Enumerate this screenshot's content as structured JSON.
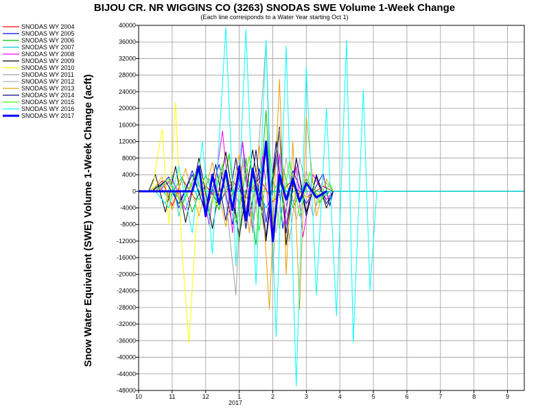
{
  "chart_data": {
    "type": "line",
    "title": "BIJOU CR. NR WIGGINS CO (3263) SNODAS SWE Volume 1-Week Change",
    "subtitle": "(Each line corresponds to a Water Year starting Oct 1)",
    "ylabel": "Snow Water Equivalent (SWE) Volume 1-Week Change (acft)",
    "xlabel": "",
    "ylim": [
      -48000,
      40000
    ],
    "y_ticks": [
      40000,
      36000,
      32000,
      28000,
      24000,
      20000,
      16000,
      12000,
      8000,
      4000,
      0,
      -4000,
      -8000,
      -12000,
      -16000,
      -20000,
      -24000,
      -28000,
      -32000,
      -36000,
      -40000,
      -44000,
      -48000
    ],
    "x_tick_labels": [
      "10",
      "11",
      "12",
      "1",
      "2",
      "3",
      "4",
      "5",
      "6",
      "7",
      "8",
      "9"
    ],
    "x_year_label": "2017",
    "grid": true,
    "legend_placement": "left",
    "series": [
      {
        "name": "SNODAS WY 2004",
        "color": "#ff0000",
        "points": [
          [
            0.4,
            0
          ],
          [
            0.7,
            2500
          ],
          [
            1.0,
            -3500
          ],
          [
            1.3,
            3000
          ],
          [
            1.7,
            -2000
          ],
          [
            2.0,
            1500
          ],
          [
            2.4,
            -3000
          ],
          [
            2.8,
            2500
          ],
          [
            3.2,
            -1800
          ],
          [
            3.6,
            3200
          ],
          [
            4.0,
            -2500
          ],
          [
            4.5,
            2000
          ],
          [
            5.0,
            -1500
          ],
          [
            5.5,
            1200
          ],
          [
            5.8,
            0
          ]
        ]
      },
      {
        "name": "SNODAS WY 2005",
        "color": "#0000ff",
        "points": [
          [
            0.5,
            0
          ],
          [
            0.9,
            3500
          ],
          [
            1.2,
            -4000
          ],
          [
            1.6,
            5000
          ],
          [
            2.0,
            -5500
          ],
          [
            2.4,
            6500
          ],
          [
            2.8,
            -8000
          ],
          [
            3.1,
            12000
          ],
          [
            3.3,
            -6000
          ],
          [
            3.6,
            5500
          ],
          [
            3.8,
            -7500
          ],
          [
            4.1,
            9500
          ],
          [
            4.3,
            -9000
          ],
          [
            4.6,
            5000
          ],
          [
            5.0,
            -3000
          ],
          [
            5.5,
            4200
          ],
          [
            5.7,
            -3500
          ],
          [
            5.8,
            0
          ]
        ]
      },
      {
        "name": "SNODAS WY 2006",
        "color": "#00c000",
        "points": [
          [
            0.3,
            0
          ],
          [
            0.6,
            1500
          ],
          [
            0.9,
            -1800
          ],
          [
            1.3,
            3500
          ],
          [
            1.6,
            -5000
          ],
          [
            2.0,
            4000
          ],
          [
            2.4,
            -4500
          ],
          [
            2.7,
            9000
          ],
          [
            3.0,
            -12000
          ],
          [
            3.2,
            8000
          ],
          [
            3.5,
            -13000
          ],
          [
            3.8,
            19500
          ],
          [
            4.0,
            -9000
          ],
          [
            4.3,
            6000
          ],
          [
            4.6,
            -4000
          ],
          [
            5.0,
            3000
          ],
          [
            5.4,
            -2500
          ],
          [
            5.7,
            0
          ]
        ]
      },
      {
        "name": "SNODAS WY 2007",
        "color": "#00cccc",
        "points": [
          [
            0.5,
            0
          ],
          [
            0.8,
            -3000
          ],
          [
            1.0,
            4000
          ],
          [
            1.2,
            -6000
          ],
          [
            1.5,
            2500
          ],
          [
            1.8,
            -2000
          ],
          [
            2.1,
            3000
          ],
          [
            2.4,
            -3500
          ],
          [
            2.7,
            2500
          ],
          [
            3.0,
            -3000
          ],
          [
            3.4,
            3500
          ],
          [
            3.8,
            -4000
          ],
          [
            4.2,
            3000
          ],
          [
            4.6,
            -2500
          ],
          [
            5.0,
            2000
          ],
          [
            5.4,
            -1500
          ],
          [
            5.7,
            0
          ]
        ]
      },
      {
        "name": "SNODAS WY 2008",
        "color": "#ff00ff",
        "points": [
          [
            0.6,
            0
          ],
          [
            1.0,
            3000
          ],
          [
            1.4,
            -4500
          ],
          [
            1.8,
            5500
          ],
          [
            2.1,
            -8000
          ],
          [
            2.5,
            14500
          ],
          [
            2.8,
            -10000
          ],
          [
            3.1,
            12000
          ],
          [
            3.4,
            -9000
          ],
          [
            3.7,
            8500
          ],
          [
            4.0,
            -13000
          ],
          [
            4.2,
            9000
          ],
          [
            4.4,
            -8000
          ],
          [
            4.7,
            6000
          ],
          [
            4.9,
            -11000
          ],
          [
            5.2,
            4000
          ],
          [
            5.6,
            -2000
          ],
          [
            5.8,
            0
          ]
        ]
      },
      {
        "name": "SNODAS WY 2009",
        "color": "#000000",
        "points": [
          [
            0.3,
            0
          ],
          [
            0.5,
            4000
          ],
          [
            0.8,
            -5000
          ],
          [
            1.1,
            6000
          ],
          [
            1.4,
            -7500
          ],
          [
            1.8,
            8000
          ],
          [
            2.2,
            -9000
          ],
          [
            2.6,
            9500
          ],
          [
            3.0,
            -11000
          ],
          [
            3.4,
            10000
          ],
          [
            3.8,
            -12000
          ],
          [
            4.2,
            15500
          ],
          [
            4.4,
            -13000
          ],
          [
            4.7,
            8000
          ],
          [
            5.0,
            -5000
          ],
          [
            5.3,
            3500
          ],
          [
            5.6,
            -4000
          ],
          [
            5.8,
            0
          ]
        ]
      },
      {
        "name": "SNODAS WY 2010",
        "color": "#ffff00",
        "points": [
          [
            0.4,
            0
          ],
          [
            0.7,
            15000
          ],
          [
            0.9,
            -8000
          ],
          [
            1.1,
            21500
          ],
          [
            1.3,
            -15000
          ],
          [
            1.5,
            -36500
          ],
          [
            1.7,
            -10000
          ],
          [
            1.9,
            3000
          ],
          [
            2.3,
            -3500
          ],
          [
            2.7,
            2500
          ],
          [
            3.1,
            -3000
          ],
          [
            3.5,
            2500
          ],
          [
            4.0,
            -2000
          ],
          [
            4.5,
            1500
          ],
          [
            5.0,
            -1500
          ],
          [
            5.6,
            0
          ]
        ]
      },
      {
        "name": "SNODAS WY 2011",
        "color": "#a0a0a0",
        "points": [
          [
            0.5,
            0
          ],
          [
            0.9,
            2500
          ],
          [
            1.3,
            -3000
          ],
          [
            1.7,
            4000
          ],
          [
            2.1,
            -5000
          ],
          [
            2.5,
            6000
          ],
          [
            2.9,
            -25000
          ],
          [
            3.1,
            8000
          ],
          [
            3.4,
            -10000
          ],
          [
            3.8,
            36000
          ],
          [
            4.0,
            -20000
          ],
          [
            4.2,
            15000
          ],
          [
            4.5,
            -12000
          ],
          [
            4.8,
            8000
          ],
          [
            5.2,
            -6000
          ],
          [
            5.5,
            3000
          ],
          [
            5.8,
            0
          ]
        ]
      },
      {
        "name": "SNODAS WY 2012",
        "color": "#b0b0b0",
        "points": [
          [
            0.5,
            0
          ],
          [
            0.9,
            2000
          ],
          [
            1.3,
            -2500
          ],
          [
            1.7,
            3000
          ],
          [
            2.1,
            -4000
          ],
          [
            2.5,
            5000
          ],
          [
            2.8,
            -6000
          ],
          [
            3.1,
            7000
          ],
          [
            3.4,
            -8000
          ],
          [
            3.8,
            9000
          ],
          [
            4.1,
            -10000
          ],
          [
            4.4,
            8000
          ],
          [
            4.7,
            -7000
          ],
          [
            5.0,
            5000
          ],
          [
            5.3,
            -3500
          ],
          [
            5.6,
            2000
          ],
          [
            5.8,
            0
          ]
        ]
      },
      {
        "name": "SNODAS WY 2013",
        "color": "#e8a000",
        "points": [
          [
            0.4,
            0
          ],
          [
            0.7,
            3500
          ],
          [
            1.0,
            -4500
          ],
          [
            1.4,
            5500
          ],
          [
            1.8,
            -6000
          ],
          [
            2.2,
            7000
          ],
          [
            2.6,
            -8500
          ],
          [
            3.0,
            9000
          ],
          [
            3.3,
            -10000
          ],
          [
            3.6,
            11000
          ],
          [
            3.9,
            -28500
          ],
          [
            4.2,
            27000
          ],
          [
            4.4,
            -20000
          ],
          [
            4.6,
            12000
          ],
          [
            4.8,
            -28500
          ],
          [
            5.0,
            18000
          ],
          [
            5.3,
            -6000
          ],
          [
            5.6,
            3000
          ],
          [
            5.8,
            0
          ]
        ]
      },
      {
        "name": "SNODAS WY 2014",
        "color": "#000080",
        "points": [
          [
            0.4,
            0
          ],
          [
            0.8,
            2500
          ],
          [
            1.2,
            -3000
          ],
          [
            1.6,
            4000
          ],
          [
            2.0,
            -5000
          ],
          [
            2.3,
            6500
          ],
          [
            2.6,
            -7000
          ],
          [
            2.9,
            8000
          ],
          [
            3.2,
            -9000
          ],
          [
            3.5,
            10000
          ],
          [
            3.8,
            -11000
          ],
          [
            4.1,
            12000
          ],
          [
            4.4,
            -10000
          ],
          [
            4.7,
            8000
          ],
          [
            5.0,
            -6000
          ],
          [
            5.3,
            4000
          ],
          [
            5.6,
            -3000
          ],
          [
            5.8,
            0
          ]
        ]
      },
      {
        "name": "SNODAS WY 2015",
        "color": "#40ff00",
        "points": [
          [
            0.5,
            0
          ],
          [
            0.9,
            3000
          ],
          [
            1.3,
            -3500
          ],
          [
            1.7,
            4500
          ],
          [
            2.1,
            -5500
          ],
          [
            2.5,
            6500
          ],
          [
            2.9,
            -7500
          ],
          [
            3.3,
            8500
          ],
          [
            3.6,
            -9500
          ],
          [
            3.9,
            10000
          ],
          [
            4.2,
            -9000
          ],
          [
            4.5,
            7500
          ],
          [
            4.8,
            -6000
          ],
          [
            5.1,
            4500
          ],
          [
            5.4,
            -3000
          ],
          [
            5.7,
            2000
          ],
          [
            5.8,
            0
          ]
        ]
      },
      {
        "name": "SNODAS WY 2016",
        "color": "#00ffff",
        "points": [
          [
            0.5,
            0
          ],
          [
            0.9,
            -4000
          ],
          [
            1.2,
            6000
          ],
          [
            1.6,
            -10000
          ],
          [
            1.9,
            12000
          ],
          [
            2.2,
            -15000
          ],
          [
            2.6,
            39500
          ],
          [
            2.9,
            -18000
          ],
          [
            3.2,
            39000
          ],
          [
            3.5,
            -22500
          ],
          [
            3.8,
            36500
          ],
          [
            4.1,
            -35000
          ],
          [
            4.4,
            35000
          ],
          [
            4.7,
            -47000
          ],
          [
            5.0,
            30000
          ],
          [
            5.3,
            -25000
          ],
          [
            5.6,
            20000
          ],
          [
            5.9,
            -30000
          ],
          [
            6.2,
            36500
          ],
          [
            6.4,
            -36500
          ],
          [
            6.7,
            24500
          ],
          [
            6.9,
            -24000
          ],
          [
            7.1,
            0
          ],
          [
            7.3,
            0
          ]
        ]
      },
      {
        "name": "SNODAS WY 2017",
        "color": "#0000ff",
        "points": [
          [
            0.0,
            0
          ],
          [
            1.6,
            0
          ],
          [
            1.8,
            6000
          ],
          [
            2.0,
            -6000
          ],
          [
            2.2,
            4000
          ],
          [
            2.4,
            -3000
          ],
          [
            2.6,
            5000
          ],
          [
            2.8,
            -4500
          ],
          [
            3.0,
            6000
          ],
          [
            3.2,
            -7000
          ],
          [
            3.4,
            5500
          ],
          [
            3.6,
            -3500
          ],
          [
            3.8,
            12000
          ],
          [
            4.0,
            -12000
          ],
          [
            4.2,
            4000
          ],
          [
            4.4,
            -2000
          ],
          [
            4.6,
            3000
          ],
          [
            4.8,
            -2500
          ],
          [
            5.0,
            2000
          ],
          [
            5.3,
            -1500
          ],
          [
            5.6,
            0
          ]
        ]
      }
    ]
  }
}
